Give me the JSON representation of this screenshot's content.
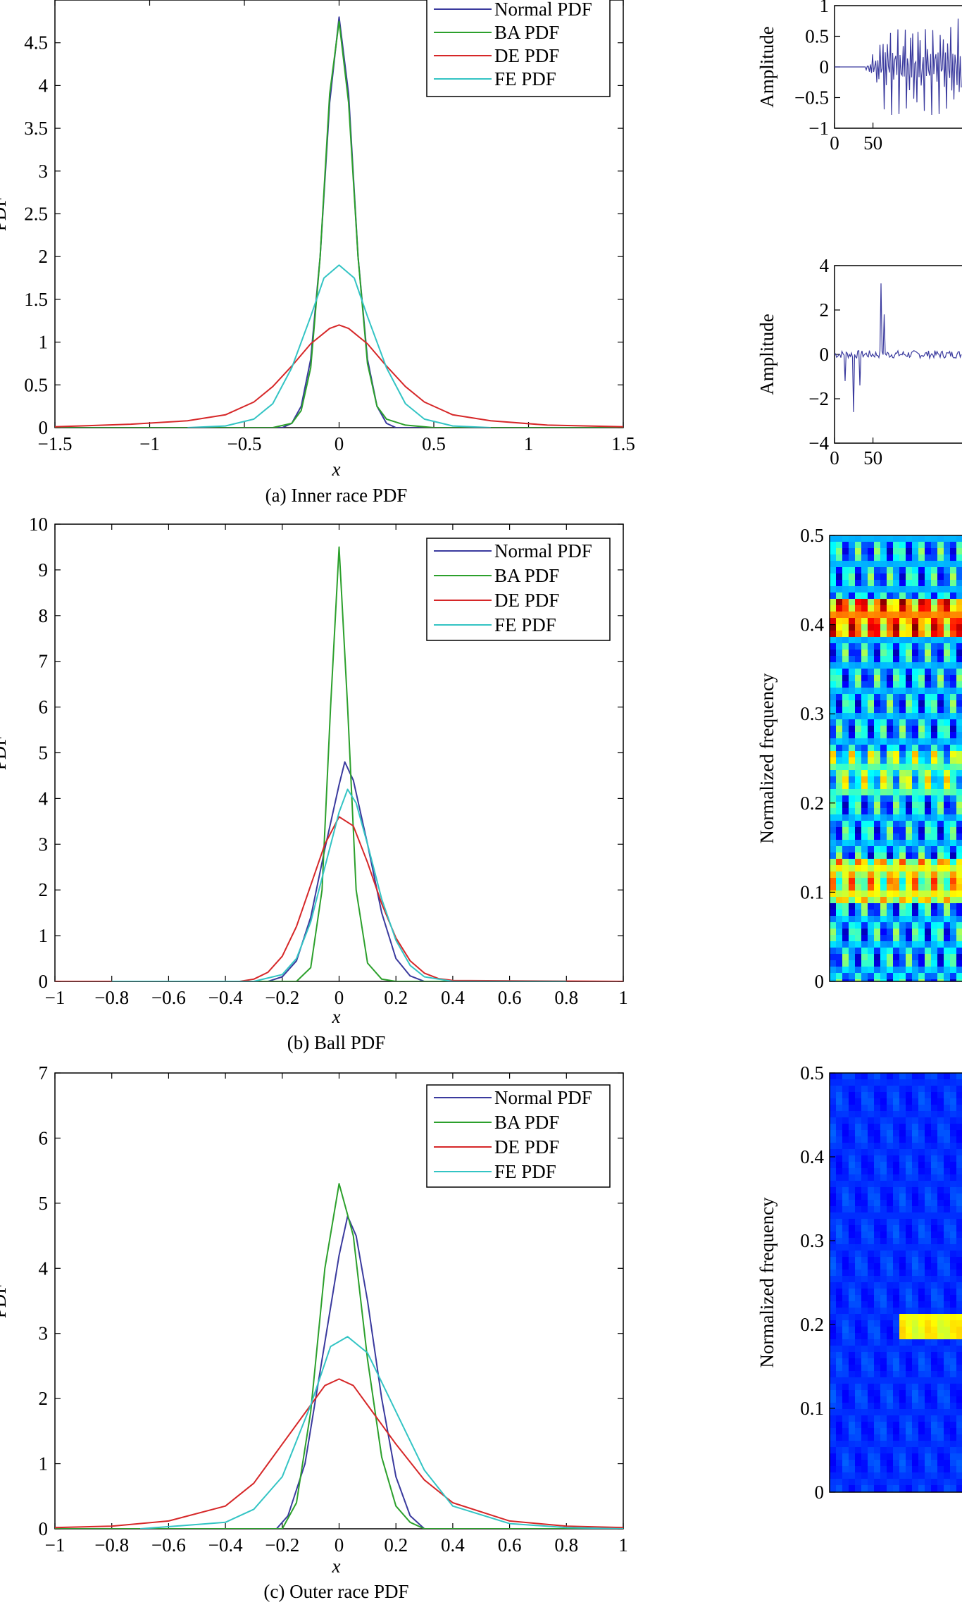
{
  "chart_data": [
    {
      "id": "a",
      "type": "line",
      "caption": "(a) Inner race PDF",
      "xlabel": "x",
      "ylabel": "PDF",
      "xlim": [
        -1.5,
        1.5
      ],
      "ylim": [
        0,
        5
      ],
      "xticks": [
        -1.5,
        -1,
        -0.5,
        0,
        0.5,
        1,
        1.5
      ],
      "xtick_labels": [
        "−1.5",
        "−1",
        "−0.5",
        "0",
        "0.5",
        "1",
        "1.5"
      ],
      "yticks": [
        0,
        0.5,
        1,
        1.5,
        2,
        2.5,
        3,
        3.5,
        4,
        4.5
      ],
      "ytick_labels": [
        "0",
        "0.5",
        "1",
        "1.5",
        "2",
        "2.5",
        "3",
        "3.5",
        "4",
        "4.5"
      ],
      "legend": "top-right",
      "series": [
        {
          "name": "Normal PDF",
          "color": "#3a3a9e",
          "x": [
            -1.5,
            -0.3,
            -0.25,
            -0.2,
            -0.15,
            -0.1,
            -0.05,
            0,
            0.05,
            0.1,
            0.15,
            0.2,
            0.25,
            0.3,
            1.5
          ],
          "y": [
            0,
            0,
            0.05,
            0.25,
            0.8,
            2.0,
            3.8,
            4.8,
            3.9,
            2.0,
            0.8,
            0.25,
            0.05,
            0,
            0
          ]
        },
        {
          "name": "BA PDF",
          "color": "#2ca02c",
          "x": [
            -1.5,
            -0.35,
            -0.25,
            -0.2,
            -0.15,
            -0.1,
            -0.05,
            0,
            0.05,
            0.1,
            0.15,
            0.2,
            0.25,
            0.35,
            0.5,
            1.5
          ],
          "y": [
            0,
            0,
            0.05,
            0.2,
            0.7,
            2.0,
            3.9,
            4.75,
            3.8,
            2.0,
            0.75,
            0.25,
            0.1,
            0.03,
            0,
            0
          ]
        },
        {
          "name": "DE PDF",
          "color": "#d62728",
          "x": [
            -1.5,
            -1.1,
            -0.8,
            -0.6,
            -0.45,
            -0.35,
            -0.25,
            -0.15,
            -0.05,
            0,
            0.05,
            0.15,
            0.25,
            0.35,
            0.45,
            0.6,
            0.8,
            1.1,
            1.5
          ],
          "y": [
            0.01,
            0.04,
            0.08,
            0.15,
            0.3,
            0.48,
            0.72,
            0.98,
            1.16,
            1.2,
            1.16,
            0.98,
            0.72,
            0.48,
            0.3,
            0.15,
            0.08,
            0.03,
            0.01
          ]
        },
        {
          "name": "FE PDF",
          "color": "#33c4c4",
          "x": [
            -0.8,
            -0.6,
            -0.45,
            -0.35,
            -0.25,
            -0.15,
            -0.08,
            0,
            0.08,
            0.15,
            0.25,
            0.35,
            0.45,
            0.6,
            0.8
          ],
          "y": [
            0,
            0.02,
            0.1,
            0.28,
            0.7,
            1.3,
            1.75,
            1.9,
            1.75,
            1.3,
            0.7,
            0.28,
            0.1,
            0.02,
            0
          ]
        }
      ]
    },
    {
      "id": "b",
      "type": "line",
      "caption": "(b) Ball PDF",
      "xlabel": "x",
      "ylabel": "PDF",
      "xlim": [
        -1,
        1
      ],
      "ylim": [
        0,
        10
      ],
      "xticks": [
        -1,
        -0.8,
        -0.6,
        -0.4,
        -0.2,
        0,
        0.2,
        0.4,
        0.6,
        0.8,
        1
      ],
      "xtick_labels": [
        "−1",
        "−0.8",
        "−0.6",
        "−0.4",
        "−0.2",
        "0",
        "0.2",
        "0.4",
        "0.6",
        "0.8",
        "1"
      ],
      "yticks": [
        0,
        1,
        2,
        3,
        4,
        5,
        6,
        7,
        8,
        9,
        10
      ],
      "ytick_labels": [
        "0",
        "1",
        "2",
        "3",
        "4",
        "5",
        "6",
        "7",
        "8",
        "9",
        "10"
      ],
      "legend": "top-right",
      "series": [
        {
          "name": "Normal PDF",
          "color": "#3a3a9e",
          "x": [
            -1,
            -0.25,
            -0.2,
            -0.15,
            -0.1,
            -0.05,
            0,
            0.02,
            0.05,
            0.1,
            0.15,
            0.2,
            0.25,
            0.3,
            1
          ],
          "y": [
            0,
            0,
            0.1,
            0.45,
            1.4,
            2.9,
            4.3,
            4.8,
            4.4,
            3.0,
            1.5,
            0.5,
            0.12,
            0,
            0
          ]
        },
        {
          "name": "BA PDF",
          "color": "#2ca02c",
          "x": [
            -1,
            -0.15,
            -0.1,
            -0.06,
            -0.03,
            0,
            0.03,
            0.06,
            0.1,
            0.15,
            0.2,
            1
          ],
          "y": [
            0,
            0,
            0.3,
            2.0,
            6.0,
            9.5,
            6.0,
            2.0,
            0.4,
            0.05,
            0,
            0
          ]
        },
        {
          "name": "DE PDF",
          "color": "#d62728",
          "x": [
            -1,
            -0.35,
            -0.3,
            -0.25,
            -0.2,
            -0.15,
            -0.1,
            -0.05,
            0,
            0.05,
            0.1,
            0.15,
            0.2,
            0.25,
            0.3,
            0.35,
            0.4,
            1
          ],
          "y": [
            0,
            0,
            0.05,
            0.2,
            0.55,
            1.2,
            2.1,
            3.0,
            3.6,
            3.4,
            2.6,
            1.7,
            0.95,
            0.45,
            0.18,
            0.06,
            0.02,
            0
          ]
        },
        {
          "name": "FE PDF",
          "color": "#33c4c4",
          "x": [
            -0.8,
            -0.3,
            -0.2,
            -0.15,
            -0.1,
            -0.05,
            0,
            0.03,
            0.06,
            0.1,
            0.15,
            0.2,
            0.25,
            0.3,
            0.4,
            0.8
          ],
          "y": [
            0,
            0,
            0.15,
            0.5,
            1.3,
            2.5,
            3.7,
            4.2,
            3.9,
            3.0,
            1.8,
            0.9,
            0.35,
            0.1,
            0,
            0
          ]
        }
      ]
    },
    {
      "id": "c",
      "type": "line",
      "caption": "(c) Outer race PDF",
      "xlabel": "x",
      "ylabel": "PDF",
      "xlim": [
        -1,
        1
      ],
      "ylim": [
        0,
        7
      ],
      "xticks": [
        -1,
        -0.8,
        -0.6,
        -0.4,
        -0.2,
        0,
        0.2,
        0.4,
        0.6,
        0.8,
        1
      ],
      "xtick_labels": [
        "−1",
        "−0.8",
        "−0.6",
        "−0.4",
        "−0.2",
        "0",
        "0.2",
        "0.4",
        "0.6",
        "0.8",
        "1"
      ],
      "yticks": [
        0,
        1,
        2,
        3,
        4,
        5,
        6,
        7
      ],
      "ytick_labels": [
        "0",
        "1",
        "2",
        "3",
        "4",
        "5",
        "6",
        "7"
      ],
      "legend": "top-right",
      "series": [
        {
          "name": "Normal PDF",
          "color": "#3a3a9e",
          "x": [
            -1,
            -0.22,
            -0.18,
            -0.12,
            -0.06,
            0,
            0.03,
            0.06,
            0.1,
            0.15,
            0.2,
            0.25,
            0.3,
            1
          ],
          "y": [
            0,
            0,
            0.2,
            1.0,
            2.6,
            4.2,
            4.8,
            4.5,
            3.5,
            2.0,
            0.8,
            0.2,
            0,
            0
          ]
        },
        {
          "name": "BA PDF",
          "color": "#2ca02c",
          "x": [
            -1,
            -0.2,
            -0.15,
            -0.1,
            -0.05,
            0,
            0.05,
            0.1,
            0.15,
            0.2,
            0.25,
            0.3,
            1
          ],
          "y": [
            0,
            0,
            0.4,
            1.8,
            4.0,
            5.3,
            4.5,
            2.6,
            1.1,
            0.35,
            0.1,
            0,
            0
          ]
        },
        {
          "name": "DE PDF",
          "color": "#d62728",
          "x": [
            -1,
            -0.8,
            -0.6,
            -0.4,
            -0.3,
            -0.2,
            -0.1,
            -0.05,
            0,
            0.05,
            0.1,
            0.2,
            0.3,
            0.4,
            0.6,
            0.8,
            1
          ],
          "y": [
            0.02,
            0.04,
            0.12,
            0.35,
            0.7,
            1.3,
            1.9,
            2.2,
            2.3,
            2.2,
            1.9,
            1.3,
            0.75,
            0.4,
            0.12,
            0.04,
            0.02
          ]
        },
        {
          "name": "FE PDF",
          "color": "#33c4c4",
          "x": [
            -0.7,
            -0.4,
            -0.3,
            -0.2,
            -0.1,
            -0.03,
            0.03,
            0.1,
            0.2,
            0.3,
            0.4,
            0.6,
            0.8,
            1
          ],
          "y": [
            0,
            0.1,
            0.3,
            0.8,
            1.9,
            2.8,
            2.95,
            2.7,
            1.8,
            0.9,
            0.35,
            0.08,
            0.02,
            0
          ]
        }
      ]
    },
    {
      "id": "d",
      "type": "line",
      "ylabel": "Amplitude",
      "xlim": [
        0,
        120
      ],
      "ylim": [
        -1,
        1
      ],
      "yticks": [
        -1,
        -0.5,
        0,
        0.5,
        1
      ],
      "ytick_labels": [
        "−1",
        "−0.5",
        "0",
        "0.5",
        "1"
      ],
      "xticks": [
        0,
        50
      ],
      "xtick_labels": [
        "0",
        "50"
      ],
      "series": [
        {
          "color": "#3a3a9e"
        }
      ]
    },
    {
      "id": "e",
      "type": "line",
      "ylabel": "Amplitude",
      "xlim": [
        0,
        120
      ],
      "ylim": [
        -4,
        4
      ],
      "yticks": [
        -4,
        -2,
        0,
        2,
        4
      ],
      "ytick_labels": [
        "−4",
        "−2",
        "0",
        "2",
        "4"
      ],
      "xticks": [
        0,
        50
      ],
      "xtick_labels": [
        "0",
        "50"
      ],
      "series": [
        {
          "color": "#3a3a9e"
        }
      ]
    },
    {
      "id": "f",
      "type": "heatmap",
      "ylabel": "Normalized frequency",
      "ylim": [
        0,
        0.5
      ],
      "yticks": [
        0,
        0.1,
        0.2,
        0.3,
        0.4,
        0.5
      ],
      "ytick_labels": [
        "0",
        "0.1",
        "0.2",
        "0.3",
        "0.4",
        "0.5"
      ],
      "colormap": "jet"
    },
    {
      "id": "g",
      "type": "heatmap",
      "ylabel": "Normalized frequency",
      "ylim": [
        0,
        0.5
      ],
      "yticks": [
        0,
        0.1,
        0.2,
        0.3,
        0.4,
        0.5
      ],
      "ytick_labels": [
        "0",
        "0.1",
        "0.2",
        "0.3",
        "0.4",
        "0.5"
      ],
      "colormap": "jet"
    }
  ]
}
